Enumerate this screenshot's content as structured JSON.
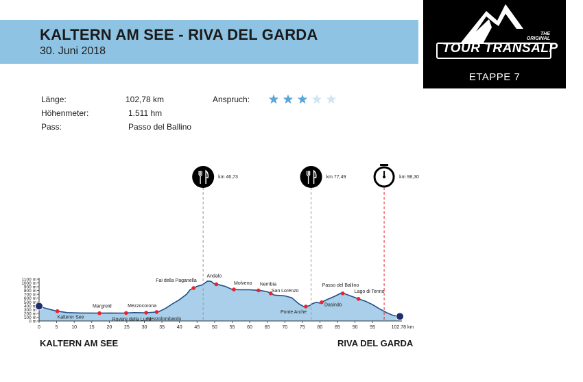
{
  "header": {
    "title": "KALTERN AM SEE - RIVA DEL GARDA",
    "date": "30. Juni 2018"
  },
  "logo": {
    "line1": "THE",
    "line2": "ORIGINAL",
    "brand": "TOUR TRANSALP",
    "stage": "ETAPPE 7"
  },
  "info": {
    "length_label": "Länge:",
    "length_value": "102,78 km",
    "elevation_label": "Höhenmeter:",
    "elevation_value": "1.511 hm",
    "pass_label": "Pass:",
    "pass_value": "Passo del Ballino",
    "difficulty_label": "Anspruch:",
    "difficulty_stars": 3,
    "difficulty_max": 5
  },
  "footer": {
    "start": "KALTERN AM SEE",
    "finish": "RIVA DEL GARDA"
  },
  "colors": {
    "banner": "#8ec3e3",
    "profile_fill": "#a9cfea",
    "profile_line": "#1f4f86",
    "marker": "#e8242f",
    "star_on": "#5aa6d8",
    "star_off": "#cfe5f3",
    "endpoint": "#1e2d6b"
  },
  "chart_data": {
    "type": "area",
    "xlabel": "km",
    "ylabel": "m",
    "xlim": [
      0,
      102.78
    ],
    "ylim": [
      0,
      1100
    ],
    "x_ticks": [
      "0",
      "5",
      "10",
      "15",
      "20",
      "25",
      "30",
      "35",
      "40",
      "45",
      "50",
      "55",
      "60",
      "65",
      "70",
      "75",
      "80",
      "85",
      "90",
      "95"
    ],
    "x_end_label": "102.78 km",
    "y_ticks": [
      "0 m",
      "100 m",
      "200 m",
      "300 m",
      "400 m",
      "500 m",
      "600 m",
      "700 m",
      "800 m",
      "900 m",
      "1000 m",
      "1100 m"
    ],
    "profile": [
      [
        0,
        390
      ],
      [
        2,
        330
      ],
      [
        5,
        260
      ],
      [
        8,
        220
      ],
      [
        12,
        210
      ],
      [
        17,
        205
      ],
      [
        20,
        210
      ],
      [
        24,
        205
      ],
      [
        27,
        220
      ],
      [
        30,
        215
      ],
      [
        32,
        225
      ],
      [
        34,
        240
      ],
      [
        36,
        330
      ],
      [
        38,
        450
      ],
      [
        40,
        560
      ],
      [
        42,
        700
      ],
      [
        43,
        820
      ],
      [
        45,
        910
      ],
      [
        46.5,
        950
      ],
      [
        48,
        1050
      ],
      [
        49,
        1040
      ],
      [
        50,
        970
      ],
      [
        51,
        960
      ],
      [
        53,
        910
      ],
      [
        55,
        830
      ],
      [
        57,
        820
      ],
      [
        60,
        820
      ],
      [
        63,
        800
      ],
      [
        65,
        770
      ],
      [
        67,
        680
      ],
      [
        70,
        660
      ],
      [
        72,
        610
      ],
      [
        74,
        450
      ],
      [
        75.5,
        370
      ],
      [
        77,
        400
      ],
      [
        78,
        460
      ],
      [
        79,
        490
      ],
      [
        80,
        470
      ],
      [
        82,
        560
      ],
      [
        84,
        640
      ],
      [
        86,
        730
      ],
      [
        87,
        720
      ],
      [
        89,
        650
      ],
      [
        91,
        580
      ],
      [
        93,
        520
      ],
      [
        95,
        430
      ],
      [
        97,
        320
      ],
      [
        99,
        220
      ],
      [
        101,
        140
      ],
      [
        102.78,
        120
      ]
    ],
    "waypoints": [
      {
        "name": "Kalterer See",
        "km": 5.2,
        "elev": 250
      },
      {
        "name": "Margreid",
        "km": 17.2,
        "elev": 205
      },
      {
        "name": "Rovere della Luna",
        "km": 24.8,
        "elev": 205
      },
      {
        "name": "Mezzocorona",
        "km": 30.5,
        "elev": 215
      },
      {
        "name": "Mezzolombardo",
        "km": 33.5,
        "elev": 230
      },
      {
        "name": "Fai della Paganella",
        "km": 44,
        "elev": 880
      },
      {
        "name": "Andalo",
        "km": 50.5,
        "elev": 970
      },
      {
        "name": "Molveno",
        "km": 55.5,
        "elev": 820
      },
      {
        "name": "Nembia",
        "km": 62.5,
        "elev": 800
      },
      {
        "name": "San Lorenzo",
        "km": 66,
        "elev": 710
      },
      {
        "name": "Ponte Arche",
        "km": 76,
        "elev": 380
      },
      {
        "name": "Dasindo",
        "km": 80.5,
        "elev": 470
      },
      {
        "name": "Passo del Ballino",
        "km": 86.5,
        "elev": 730
      },
      {
        "name": "Lago di Tenno",
        "km": 91,
        "elev": 560
      }
    ],
    "stations": [
      {
        "kind": "food",
        "icon": "fork-knife-icon",
        "km": 46.73,
        "label": "km 46,73"
      },
      {
        "kind": "food",
        "icon": "fork-knife-icon",
        "km": 77.49,
        "label": "km 77,49"
      },
      {
        "kind": "timing",
        "icon": "stopwatch-icon",
        "km": 98.3,
        "label": "km 98,30"
      }
    ]
  }
}
